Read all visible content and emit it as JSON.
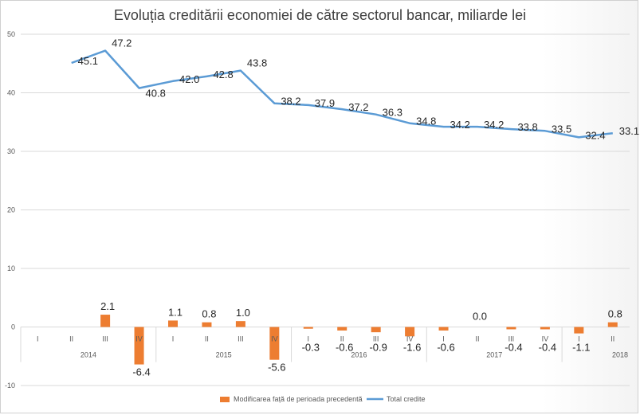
{
  "chart_data": {
    "type": "bar+line",
    "title": "Evoluția creditării economiei de către sectorul bancar, miliarde lei",
    "ylim": [
      -10,
      50
    ],
    "yticks": [
      -10,
      0,
      10,
      20,
      30,
      40,
      50
    ],
    "grid": true,
    "legend_position": "bottom",
    "categories": [
      "I",
      "II",
      "III",
      "IV",
      "I",
      "II",
      "III",
      "IV",
      "I",
      "II",
      "III",
      "IV",
      "I",
      "II",
      "III",
      "IV",
      "I",
      "II"
    ],
    "years": [
      {
        "label": "2014",
        "start": 0,
        "count": 4
      },
      {
        "label": "2015",
        "start": 4,
        "count": 4
      },
      {
        "label": "2016",
        "start": 8,
        "count": 4
      },
      {
        "label": "2017",
        "start": 12,
        "count": 4
      },
      {
        "label": "2018",
        "start": 16,
        "count": 2
      }
    ],
    "series": [
      {
        "name": "Modificarea față de perioada precedentă",
        "kind": "bar",
        "color": "#ED7D31",
        "values": [
          null,
          null,
          2.1,
          -6.4,
          1.1,
          0.8,
          1.0,
          -5.6,
          -0.3,
          -0.6,
          -0.9,
          -1.6,
          -0.6,
          0.0,
          -0.4,
          -0.4,
          -1.1,
          0.8
        ],
        "labels": [
          "",
          "",
          "2.1",
          "-6.4",
          "1.1",
          "0.8",
          "1.0",
          "-5.6",
          "-0.3",
          "-0.6",
          "-0.9",
          "-1.6",
          "-0.6",
          "0.0",
          "-0.4",
          "-0.4",
          "-1.1",
          "0.8"
        ]
      },
      {
        "name": "Total credite",
        "kind": "line",
        "color": "#5B9BD5",
        "values": [
          null,
          45.1,
          47.2,
          40.8,
          42.0,
          42.8,
          43.8,
          38.2,
          37.9,
          37.2,
          36.3,
          34.8,
          34.2,
          34.2,
          33.8,
          33.5,
          32.4,
          33.1
        ],
        "labels": [
          "",
          "45.1",
          "47.2",
          "40.8",
          "42.0",
          "42.8",
          "43.8",
          "38.2",
          "37.9",
          "37.2",
          "36.3",
          "34.8",
          "34.2",
          "34.2",
          "33.8",
          "33.5",
          "32.4",
          "33.1"
        ]
      }
    ]
  }
}
